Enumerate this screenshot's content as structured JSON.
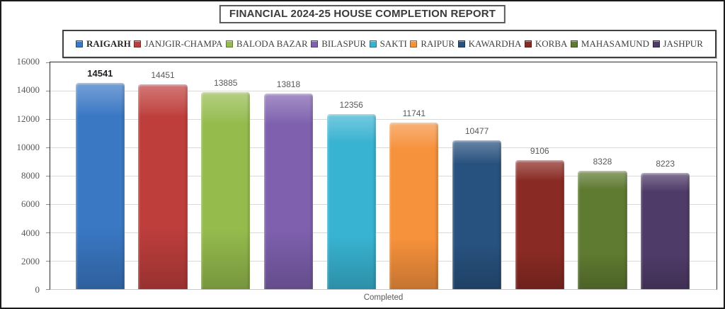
{
  "chart_data": {
    "type": "bar",
    "title": "FINANCIAL 2024-25 HOUSE COMPLETION REPORT",
    "xlabel": "Completed",
    "ylabel": "",
    "categories": [
      "RAIGARH",
      "JANJGIR-CHAMPA",
      "BALODA BAZAR",
      "BILASPUR",
      "SAKTI",
      "RAIPUR",
      "KAWARDHA",
      "KORBA",
      "MAHASAMUND",
      "JASHPUR"
    ],
    "values": [
      14541,
      14451,
      13885,
      13818,
      12356,
      11741,
      10477,
      9106,
      8328,
      8223
    ],
    "colors": [
      "#3a78c4",
      "#be3e3c",
      "#95bb4d",
      "#7e60ae",
      "#38b3d2",
      "#f6913c",
      "#27517e",
      "#8a2a24",
      "#5f7a31",
      "#4f3b68"
    ],
    "ylim": [
      0,
      16000
    ],
    "ytick_interval": 2000,
    "grid": true,
    "legend_position": "top",
    "highlight_index": 0,
    "value_labels_shown": true,
    "axis_text_color": "#595959",
    "gridline_color": "#d9d9d9"
  }
}
